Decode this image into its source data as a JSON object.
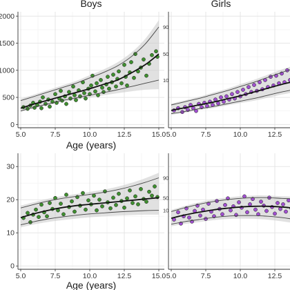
{
  "chart_data": [
    {
      "type": "scatter",
      "panel": "top-left",
      "strip_title": "Boys",
      "xlabel": "Age (years)",
      "ylabel": "",
      "xlim": [
        4.8,
        15.4
      ],
      "ylim": [
        -60,
        2080
      ],
      "xticks": [
        "5.0",
        "7.5",
        "10.0",
        "12.5",
        "15.0"
      ],
      "yticks": [
        "0",
        "500",
        "1000",
        "1500",
        "2000"
      ],
      "ytick_labels": [
        "0",
        "500",
        "1000",
        "1500",
        "2000"
      ],
      "grid": true,
      "point_color": "#3f8f2f",
      "band_color": "#c9c9c9",
      "centile_labels": [
        "90",
        "50",
        "10"
      ],
      "centiles": [
        {
          "name": "90",
          "x": [
            5,
            6,
            7,
            8,
            9,
            10,
            11,
            12,
            13,
            14,
            15
          ],
          "y": [
            440,
            520,
            600,
            680,
            760,
            860,
            960,
            1080,
            1250,
            1480,
            1800
          ]
        },
        {
          "name": "50",
          "x": [
            5,
            6,
            7,
            8,
            9,
            10,
            11,
            12,
            13,
            14,
            15
          ],
          "y": [
            300,
            380,
            450,
            520,
            590,
            660,
            740,
            820,
            950,
            1100,
            1300
          ]
        },
        {
          "name": "10",
          "x": [
            5,
            6,
            7,
            8,
            9,
            10,
            11,
            12,
            13,
            14,
            15
          ],
          "y": [
            250,
            320,
            380,
            440,
            490,
            540,
            590,
            640,
            700,
            760,
            820
          ]
        }
      ],
      "points": [
        [
          5.2,
          320
        ],
        [
          5.5,
          290
        ],
        [
          5.7,
          350
        ],
        [
          5.9,
          400
        ],
        [
          6.0,
          310
        ],
        [
          6.2,
          360
        ],
        [
          6.4,
          420
        ],
        [
          6.5,
          300
        ],
        [
          6.6,
          500
        ],
        [
          6.8,
          380
        ],
        [
          7.0,
          460
        ],
        [
          7.1,
          330
        ],
        [
          7.3,
          420
        ],
        [
          7.5,
          560
        ],
        [
          7.6,
          400
        ],
        [
          7.8,
          480
        ],
        [
          7.9,
          620
        ],
        [
          8.0,
          440
        ],
        [
          8.2,
          520
        ],
        [
          8.3,
          380
        ],
        [
          8.5,
          600
        ],
        [
          8.6,
          480
        ],
        [
          8.8,
          700
        ],
        [
          8.9,
          540
        ],
        [
          9.0,
          450
        ],
        [
          9.2,
          630
        ],
        [
          9.3,
          520
        ],
        [
          9.5,
          780
        ],
        [
          9.6,
          580
        ],
        [
          9.7,
          480
        ],
        [
          9.9,
          660
        ],
        [
          10.0,
          560
        ],
        [
          10.1,
          720
        ],
        [
          10.2,
          900
        ],
        [
          10.4,
          610
        ],
        [
          10.5,
          760
        ],
        [
          10.6,
          540
        ],
        [
          10.8,
          820
        ],
        [
          10.9,
          680
        ],
        [
          11.0,
          600
        ],
        [
          11.2,
          740
        ],
        [
          11.3,
          880
        ],
        [
          11.4,
          660
        ],
        [
          11.6,
          780
        ],
        [
          11.7,
          920
        ],
        [
          11.9,
          700
        ],
        [
          12.0,
          840
        ],
        [
          12.1,
          980
        ],
        [
          12.3,
          760
        ],
        [
          12.5,
          1100
        ],
        [
          12.6,
          880
        ],
        [
          12.7,
          720
        ],
        [
          12.9,
          960
        ],
        [
          13.0,
          1150
        ],
        [
          13.2,
          860
        ],
        [
          13.3,
          1300
        ],
        [
          13.5,
          980
        ],
        [
          13.7,
          1050
        ],
        [
          13.9,
          1200
        ],
        [
          14.1,
          900
        ],
        [
          14.3,
          1120
        ],
        [
          14.5,
          1280
        ],
        [
          14.8,
          1350
        ],
        [
          14.9,
          1250
        ]
      ]
    },
    {
      "type": "scatter",
      "panel": "top-right",
      "strip_title": "Girls",
      "xlabel": "",
      "ylabel": "",
      "xlim": [
        4.8,
        15.4
      ],
      "ylim": [
        -60,
        2080
      ],
      "xticks": [
        "5.0",
        "7.5",
        "10.0",
        "12.5"
      ],
      "grid": true,
      "point_color": "#a04fd0",
      "band_color": "#c9c9c9",
      "centiles": [
        {
          "name": "90",
          "x": [
            5,
            6,
            7,
            8,
            9,
            10,
            11,
            12,
            13,
            14,
            15
          ],
          "y": [
            360,
            420,
            480,
            550,
            620,
            700,
            780,
            870,
            960,
            1040,
            1120
          ]
        },
        {
          "name": "50",
          "x": [
            5,
            6,
            7,
            8,
            9,
            10,
            11,
            12,
            13,
            14,
            15
          ],
          "y": [
            260,
            310,
            360,
            410,
            470,
            530,
            600,
            670,
            740,
            800,
            860
          ]
        },
        {
          "name": "10",
          "x": [
            5,
            6,
            7,
            8,
            9,
            10,
            11,
            12,
            13,
            14,
            15
          ],
          "y": [
            200,
            240,
            290,
            330,
            380,
            430,
            480,
            540,
            600,
            650,
            700
          ]
        }
      ],
      "points": [
        [
          5.2,
          260
        ],
        [
          5.5,
          300
        ],
        [
          5.8,
          230
        ],
        [
          6.0,
          320
        ],
        [
          6.2,
          270
        ],
        [
          6.4,
          360
        ],
        [
          6.6,
          300
        ],
        [
          6.8,
          250
        ],
        [
          7.0,
          380
        ],
        [
          7.2,
          320
        ],
        [
          7.4,
          400
        ],
        [
          7.6,
          340
        ],
        [
          7.8,
          420
        ],
        [
          8.0,
          360
        ],
        [
          8.2,
          460
        ],
        [
          8.4,
          390
        ],
        [
          8.6,
          500
        ],
        [
          8.8,
          420
        ],
        [
          9.0,
          520
        ],
        [
          9.2,
          460
        ],
        [
          9.4,
          560
        ],
        [
          9.6,
          480
        ],
        [
          9.8,
          600
        ],
        [
          10.0,
          520
        ],
        [
          10.2,
          640
        ],
        [
          10.4,
          560
        ],
        [
          10.6,
          690
        ],
        [
          10.8,
          600
        ],
        [
          11.0,
          730
        ],
        [
          11.2,
          620
        ],
        [
          11.4,
          780
        ],
        [
          11.6,
          650
        ],
        [
          11.8,
          820
        ],
        [
          12.0,
          690
        ],
        [
          12.2,
          880
        ],
        [
          12.4,
          720
        ],
        [
          12.6,
          900
        ],
        [
          12.8,
          760
        ],
        [
          13.0,
          940
        ],
        [
          13.2,
          780
        ],
        [
          13.4,
          1000
        ],
        [
          13.6,
          820
        ],
        [
          13.8,
          880
        ],
        [
          14.0,
          1020
        ]
      ]
    },
    {
      "type": "scatter",
      "panel": "bottom-left",
      "xlabel": "Age (years)",
      "ylabel": "",
      "xlim": [
        4.8,
        15.4
      ],
      "ylim": [
        -1,
        34
      ],
      "xticks": [
        "5.0",
        "7.5",
        "10.0",
        "12.5",
        "15.0"
      ],
      "yticks": [
        "0",
        "10",
        "20",
        "30"
      ],
      "ytick_labels": [
        "0",
        "10",
        "20",
        "30"
      ],
      "grid": true,
      "point_color": "#3f8f2f",
      "band_color": "#c9c9c9",
      "centile_labels": [
        "90",
        "50",
        "10"
      ],
      "centiles": [
        {
          "name": "90",
          "x": [
            5,
            6,
            7,
            8,
            9,
            10,
            11,
            12,
            13,
            14,
            15
          ],
          "y": [
            17.5,
            18.6,
            19.6,
            20.4,
            21.0,
            21.6,
            22.2,
            23.0,
            24.0,
            25.2,
            26.6
          ]
        },
        {
          "name": "50",
          "x": [
            5,
            6,
            7,
            8,
            9,
            10,
            11,
            12,
            13,
            14,
            15
          ],
          "y": [
            14.6,
            15.8,
            16.8,
            17.6,
            18.2,
            18.6,
            19.0,
            19.4,
            19.8,
            20.2,
            20.6
          ]
        },
        {
          "name": "10",
          "x": [
            5,
            6,
            7,
            8,
            9,
            10,
            11,
            12,
            13,
            14,
            15
          ],
          "y": [
            12.4,
            13.4,
            14.2,
            14.8,
            15.3,
            15.7,
            16.0,
            16.3,
            16.5,
            16.7,
            16.8
          ]
        }
      ],
      "points": [
        [
          5.2,
          14.5
        ],
        [
          5.5,
          16.0
        ],
        [
          5.7,
          13.2
        ],
        [
          5.9,
          15.5
        ],
        [
          6.1,
          17.0
        ],
        [
          6.3,
          14.8
        ],
        [
          6.5,
          18.5
        ],
        [
          6.7,
          16.2
        ],
        [
          6.9,
          15.0
        ],
        [
          7.1,
          19.0
        ],
        [
          7.3,
          17.2
        ],
        [
          7.5,
          20.5
        ],
        [
          7.7,
          16.8
        ],
        [
          7.9,
          18.8
        ],
        [
          8.1,
          15.6
        ],
        [
          8.3,
          21.5
        ],
        [
          8.5,
          17.8
        ],
        [
          8.7,
          19.5
        ],
        [
          8.9,
          16.4
        ],
        [
          9.1,
          20.8
        ],
        [
          9.3,
          18.2
        ],
        [
          9.5,
          22.0
        ],
        [
          9.7,
          17.0
        ],
        [
          9.9,
          19.8
        ],
        [
          10.1,
          18.6
        ],
        [
          10.3,
          21.2
        ],
        [
          10.5,
          16.8
        ],
        [
          10.7,
          20.0
        ],
        [
          10.9,
          18.0
        ],
        [
          11.1,
          22.5
        ],
        [
          11.3,
          19.2
        ],
        [
          11.5,
          17.4
        ],
        [
          11.7,
          20.6
        ],
        [
          11.9,
          18.4
        ],
        [
          12.1,
          21.8
        ],
        [
          12.3,
          19.6
        ],
        [
          12.5,
          17.6
        ],
        [
          12.7,
          20.4
        ],
        [
          12.9,
          22.8
        ],
        [
          13.1,
          19.0
        ],
        [
          13.3,
          21.0
        ],
        [
          13.5,
          18.6
        ],
        [
          13.7,
          23.2
        ],
        [
          13.9,
          20.2
        ],
        [
          14.1,
          19.4
        ],
        [
          14.3,
          22.4
        ],
        [
          14.5,
          21.2
        ],
        [
          14.7,
          24.0
        ],
        [
          14.9,
          20.8
        ]
      ]
    },
    {
      "type": "scatter",
      "panel": "bottom-right",
      "xlabel": "",
      "ylabel": "",
      "xlim": [
        4.8,
        15.4
      ],
      "ylim": [
        -1,
        34
      ],
      "xticks": [
        "5.0",
        "7.5",
        "10.0",
        "12.5"
      ],
      "grid": true,
      "point_color": "#a04fd0",
      "band_color": "#c9c9c9",
      "centiles": [
        {
          "name": "90",
          "x": [
            5,
            6,
            7,
            8,
            9,
            10,
            11,
            12,
            13,
            14,
            15
          ],
          "y": [
            16.4,
            17.6,
            18.6,
            19.4,
            20.0,
            20.4,
            20.6,
            20.6,
            20.4,
            20.2,
            20.0
          ]
        },
        {
          "name": "50",
          "x": [
            5,
            6,
            7,
            8,
            9,
            10,
            11,
            12,
            13,
            14,
            15
          ],
          "y": [
            14.4,
            15.4,
            16.2,
            16.9,
            17.4,
            17.8,
            18.0,
            18.0,
            17.8,
            17.4,
            17.0
          ]
        },
        {
          "name": "10",
          "x": [
            5,
            6,
            7,
            8,
            9,
            10,
            11,
            12,
            13,
            14,
            15
          ],
          "y": [
            12.6,
            13.4,
            14.0,
            14.6,
            15.0,
            15.2,
            15.2,
            15.0,
            14.6,
            14.0,
            13.2
          ]
        }
      ],
      "points": [
        [
          5.2,
          14.0
        ],
        [
          5.5,
          16.2
        ],
        [
          5.7,
          12.8
        ],
        [
          5.9,
          15.0
        ],
        [
          6.1,
          17.4
        ],
        [
          6.3,
          14.6
        ],
        [
          6.5,
          13.4
        ],
        [
          6.7,
          16.6
        ],
        [
          6.9,
          18.2
        ],
        [
          7.1,
          15.2
        ],
        [
          7.3,
          17.0
        ],
        [
          7.5,
          14.2
        ],
        [
          7.7,
          18.8
        ],
        [
          7.9,
          16.4
        ],
        [
          8.1,
          15.0
        ],
        [
          8.3,
          19.6
        ],
        [
          8.5,
          17.2
        ],
        [
          8.7,
          15.6
        ],
        [
          8.9,
          18.4
        ],
        [
          9.1,
          20.4
        ],
        [
          9.3,
          16.8
        ],
        [
          9.5,
          18.0
        ],
        [
          9.7,
          15.4
        ],
        [
          9.9,
          19.2
        ],
        [
          10.1,
          17.6
        ],
        [
          10.3,
          21.0
        ],
        [
          10.5,
          16.2
        ],
        [
          10.7,
          18.6
        ],
        [
          10.9,
          20.2
        ],
        [
          11.1,
          17.0
        ],
        [
          11.3,
          15.6
        ],
        [
          11.5,
          19.4
        ],
        [
          11.7,
          18.2
        ],
        [
          11.9,
          16.6
        ],
        [
          12.1,
          20.6
        ],
        [
          12.3,
          17.8
        ],
        [
          12.5,
          15.8
        ],
        [
          12.7,
          19.0
        ],
        [
          12.9,
          17.2
        ],
        [
          13.1,
          18.6
        ],
        [
          13.3,
          16.4
        ],
        [
          13.5,
          19.8
        ],
        [
          13.7,
          17.4
        ],
        [
          13.9,
          15.2
        ]
      ]
    }
  ]
}
